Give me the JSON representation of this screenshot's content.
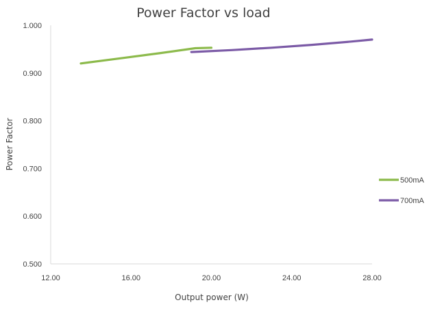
{
  "chart_data": {
    "type": "line",
    "title": "Power Factor vs load",
    "xlabel": "Output power (W)",
    "ylabel": "Power Factor",
    "xlim": [
      12,
      28
    ],
    "ylim": [
      0.5,
      1.0
    ],
    "x_ticks": [
      "12.00",
      "16.00",
      "20.00",
      "24.00",
      "28.00"
    ],
    "y_ticks": [
      "0.500",
      "0.600",
      "0.700",
      "0.800",
      "0.900",
      "1.000"
    ],
    "grid": false,
    "legend_position": "right",
    "series": [
      {
        "name": "500mA",
        "color": "#8cba4b",
        "x": [
          13.5,
          15.5,
          17.5,
          19.2,
          20.0
        ],
        "y": [
          0.92,
          0.931,
          0.942,
          0.952,
          0.953
        ]
      },
      {
        "name": "700mA",
        "color": "#7b5aa6",
        "x": [
          19.0,
          21.0,
          23.0,
          25.0,
          27.0,
          28.0
        ],
        "y": [
          0.944,
          0.948,
          0.953,
          0.959,
          0.966,
          0.97
        ]
      }
    ]
  }
}
